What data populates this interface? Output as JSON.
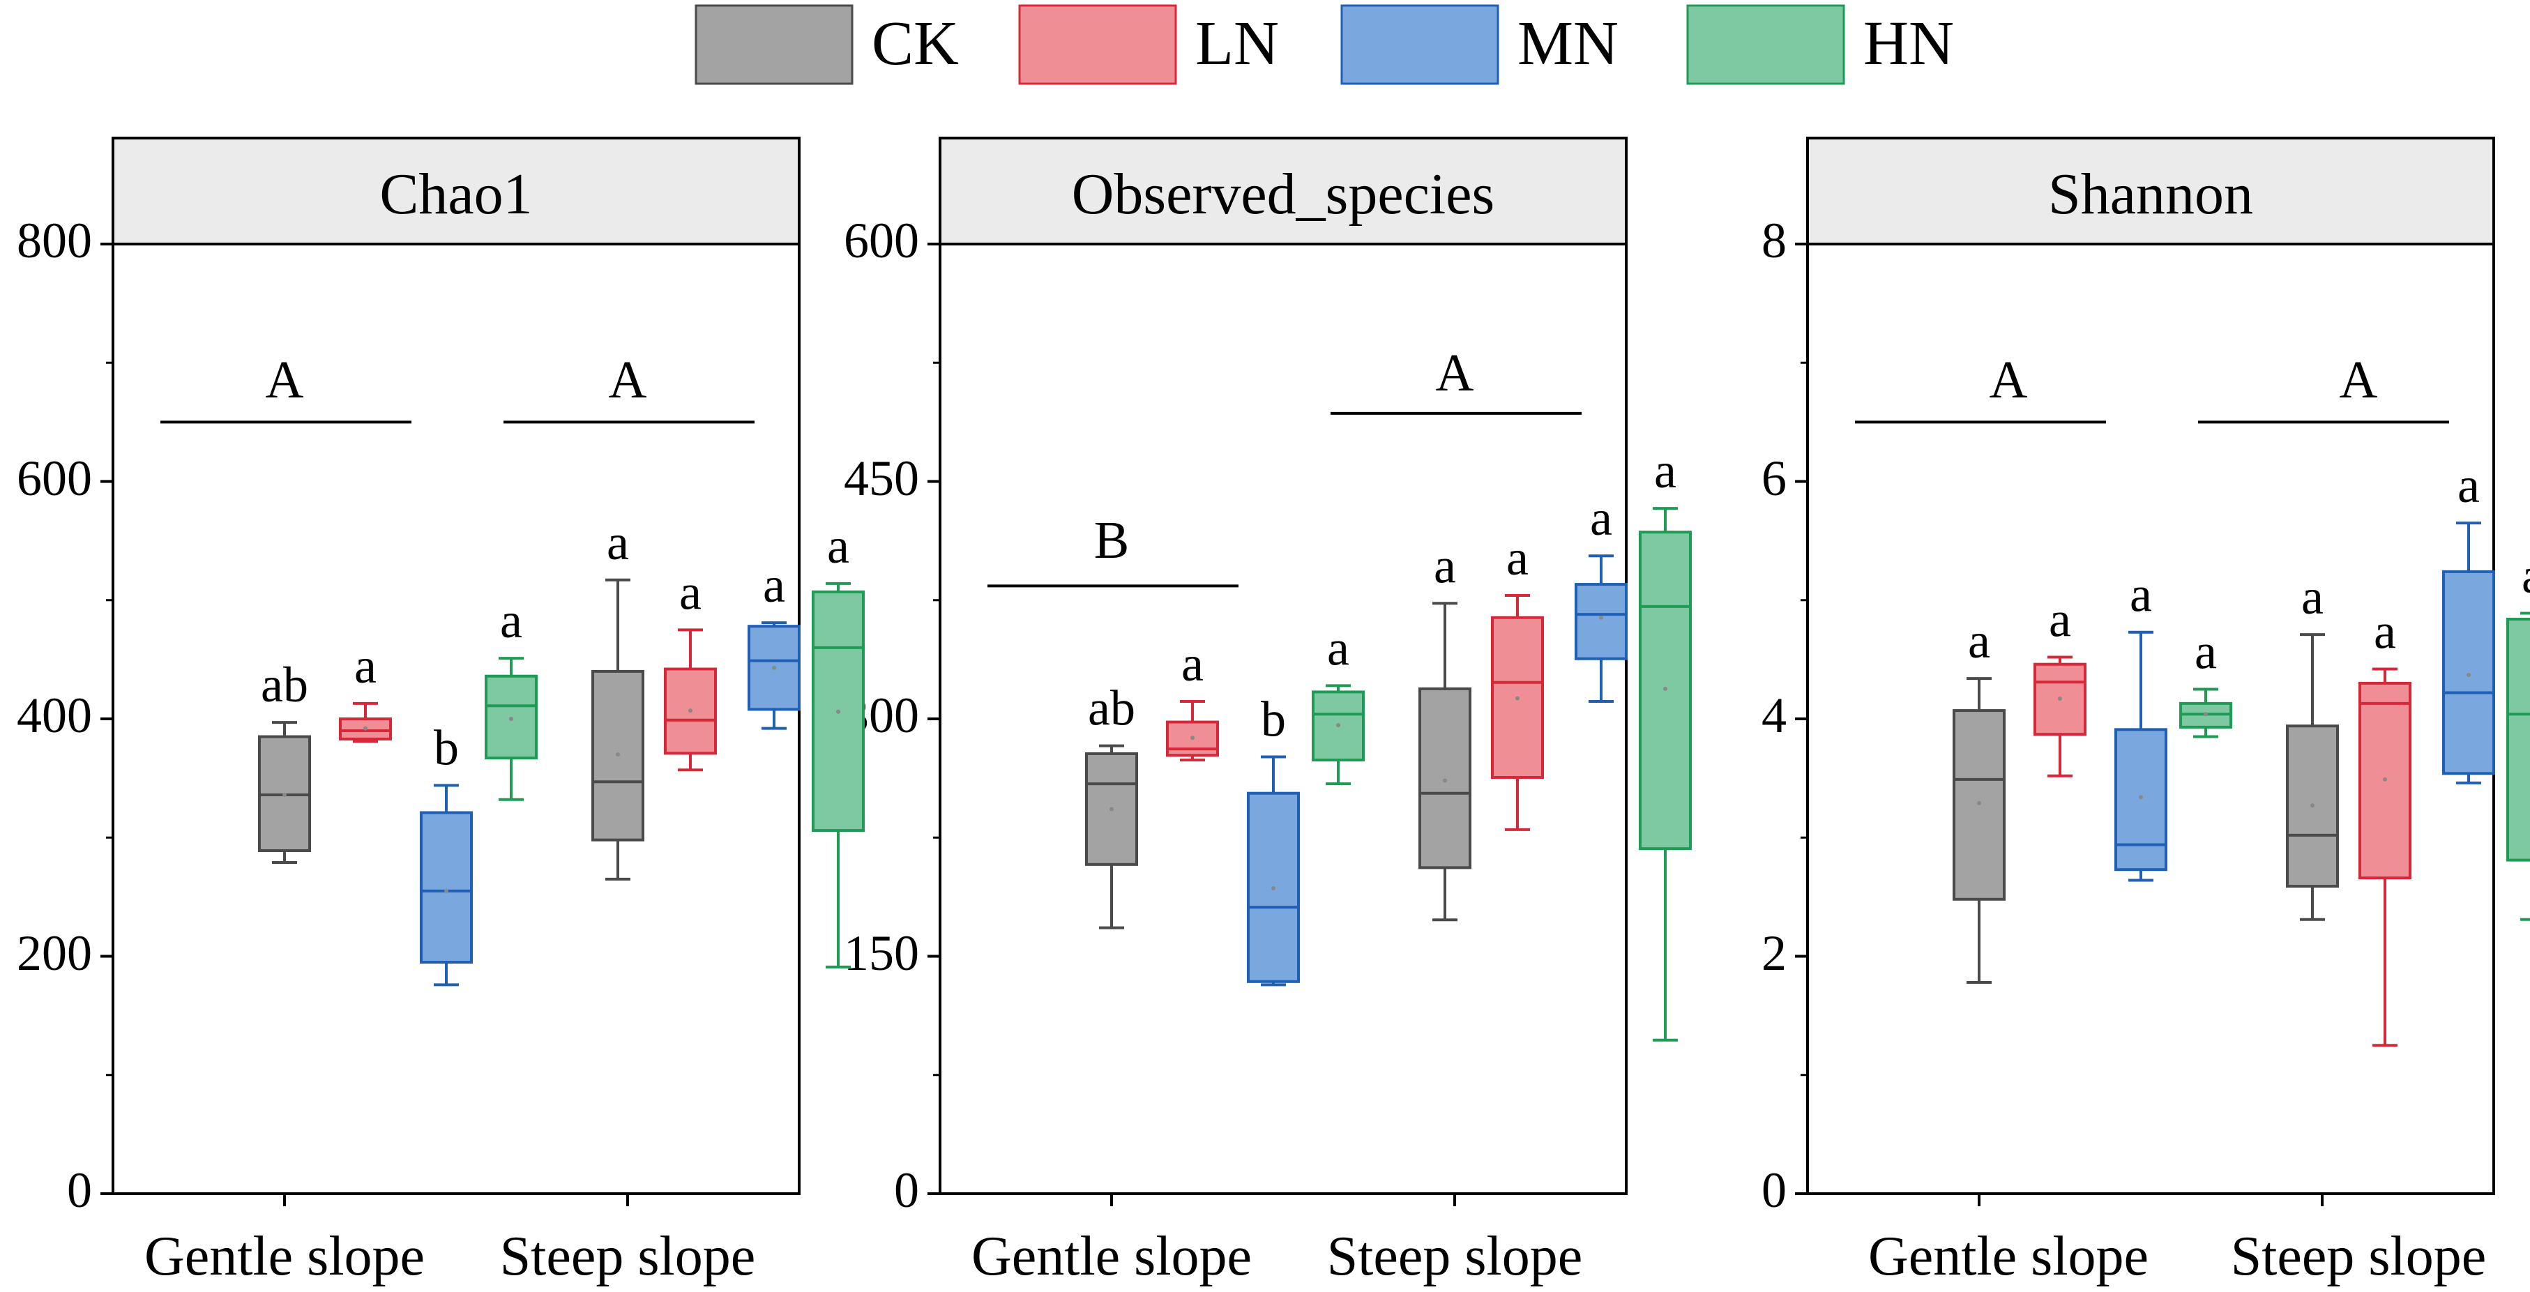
{
  "colors": {
    "CK": {
      "fill": "#a3a3a3",
      "stroke": "#4a4a4a"
    },
    "LN": {
      "fill": "#ef8f95",
      "stroke": "#d7283a"
    },
    "MN": {
      "fill": "#7aa7de",
      "stroke": "#1f5fb4"
    },
    "HN": {
      "fill": "#7fc9a2",
      "stroke": "#1f9b55"
    }
  },
  "legend": [
    {
      "key": "CK",
      "label": "CK"
    },
    {
      "key": "LN",
      "label": "LN"
    },
    {
      "key": "MN",
      "label": "MN"
    },
    {
      "key": "HN",
      "label": "HN"
    }
  ],
  "chart_data": [
    {
      "type": "box",
      "title": "Chao1",
      "ylim": [
        0,
        800
      ],
      "yticks": [
        "0",
        "200",
        "400",
        "600",
        "800"
      ],
      "yvals": [
        0,
        200,
        400,
        600,
        800
      ],
      "categories": [
        "Gentle slope",
        "Steep slope"
      ],
      "group_letters": [
        "A",
        "A"
      ],
      "group_bar_y": 650,
      "groups": [
        [
          {
            "series": "CK",
            "min": 279,
            "q1": 289,
            "median": 336,
            "q3": 385,
            "max": 397,
            "mean": 336,
            "letter": "ab"
          },
          {
            "series": "LN",
            "min": 381,
            "q1": 383,
            "median": 390,
            "q3": 400,
            "max": 413,
            "mean": 392,
            "letter": "a"
          },
          {
            "series": "MN",
            "min": 176,
            "q1": 195,
            "median": 255,
            "q3": 321,
            "max": 344,
            "mean": 255,
            "letter": "b"
          },
          {
            "series": "HN",
            "min": 332,
            "q1": 367,
            "median": 411,
            "q3": 436,
            "max": 451,
            "mean": 400,
            "letter": "a"
          }
        ],
        [
          {
            "series": "CK",
            "min": 265,
            "q1": 298,
            "median": 347,
            "q3": 440,
            "max": 517,
            "mean": 370,
            "letter": "a"
          },
          {
            "series": "LN",
            "min": 357,
            "q1": 371,
            "median": 399,
            "q3": 442,
            "max": 475,
            "mean": 407,
            "letter": "a"
          },
          {
            "series": "MN",
            "min": 392,
            "q1": 408,
            "median": 449,
            "q3": 478,
            "max": 481,
            "mean": 443,
            "letter": "a"
          },
          {
            "series": "HN",
            "min": 191,
            "q1": 306,
            "median": 460,
            "q3": 507,
            "max": 514,
            "mean": 406,
            "letter": "a"
          }
        ]
      ]
    },
    {
      "type": "box",
      "title": "Observed_species",
      "ylim": [
        0,
        600
      ],
      "yticks": [
        "0",
        "150",
        "300",
        "450",
        "600"
      ],
      "yvals": [
        0,
        150,
        300,
        450,
        600
      ],
      "categories": [
        "Gentle slope",
        "Steep slope"
      ],
      "group_letters": [
        "B",
        "A"
      ],
      "group_bar_y": [
        384,
        493
      ],
      "groups": [
        [
          {
            "series": "CK",
            "min": 168,
            "q1": 208,
            "median": 259,
            "q3": 278,
            "max": 283,
            "mean": 243,
            "letter": "ab"
          },
          {
            "series": "LN",
            "min": 274,
            "q1": 277,
            "median": 281,
            "q3": 298,
            "max": 311,
            "mean": 288,
            "letter": "a"
          },
          {
            "series": "MN",
            "min": 132,
            "q1": 134,
            "median": 181,
            "q3": 253,
            "max": 276,
            "mean": 193,
            "letter": "b"
          },
          {
            "series": "HN",
            "min": 259,
            "q1": 274,
            "median": 303,
            "q3": 317,
            "max": 321,
            "mean": 296,
            "letter": "a"
          }
        ],
        [
          {
            "series": "CK",
            "min": 173,
            "q1": 206,
            "median": 253,
            "q3": 319,
            "max": 373,
            "mean": 261,
            "letter": "a"
          },
          {
            "series": "LN",
            "min": 230,
            "q1": 263,
            "median": 323,
            "q3": 364,
            "max": 378,
            "mean": 313,
            "letter": "a"
          },
          {
            "series": "MN",
            "min": 311,
            "q1": 338,
            "median": 366,
            "q3": 385,
            "max": 403,
            "mean": 364,
            "letter": "a"
          },
          {
            "series": "HN",
            "min": 97,
            "q1": 218,
            "median": 371,
            "q3": 418,
            "max": 433,
            "mean": 319,
            "letter": "a"
          }
        ]
      ]
    },
    {
      "type": "box",
      "title": "Shannon",
      "ylim": [
        0,
        8
      ],
      "yticks": [
        "0",
        "2",
        "4",
        "6",
        "8"
      ],
      "yvals": [
        0,
        2,
        4,
        6,
        8
      ],
      "categories": [
        "Gentle slope",
        "Steep slope"
      ],
      "group_letters": [
        "A",
        "A"
      ],
      "group_bar_y": 6.5,
      "groups": [
        [
          {
            "series": "CK",
            "min": 1.78,
            "q1": 2.48,
            "median": 3.49,
            "q3": 4.07,
            "max": 4.34,
            "mean": 3.29,
            "letter": "a"
          },
          {
            "series": "LN",
            "min": 3.52,
            "q1": 3.87,
            "median": 4.31,
            "q3": 4.46,
            "max": 4.52,
            "mean": 4.17,
            "letter": "a"
          },
          {
            "series": "MN",
            "min": 2.64,
            "q1": 2.73,
            "median": 2.94,
            "q3": 3.91,
            "max": 4.73,
            "mean": 3.34,
            "letter": "a"
          },
          {
            "series": "HN",
            "min": 3.85,
            "q1": 3.93,
            "median": 4.04,
            "q3": 4.13,
            "max": 4.25,
            "mean": 4.04,
            "letter": "a"
          }
        ],
        [
          {
            "series": "CK",
            "min": 2.31,
            "q1": 2.59,
            "median": 3.02,
            "q3": 3.94,
            "max": 4.71,
            "mean": 3.27,
            "letter": "a"
          },
          {
            "series": "LN",
            "min": 1.25,
            "q1": 2.66,
            "median": 4.13,
            "q3": 4.3,
            "max": 4.42,
            "mean": 3.49,
            "letter": "a"
          },
          {
            "series": "MN",
            "min": 3.46,
            "q1": 3.54,
            "median": 4.22,
            "q3": 5.24,
            "max": 5.65,
            "mean": 4.37,
            "letter": "a"
          },
          {
            "series": "HN",
            "min": 2.31,
            "q1": 2.81,
            "median": 4.04,
            "q3": 4.84,
            "max": 4.89,
            "mean": 3.83,
            "letter": "a"
          }
        ]
      ]
    }
  ]
}
